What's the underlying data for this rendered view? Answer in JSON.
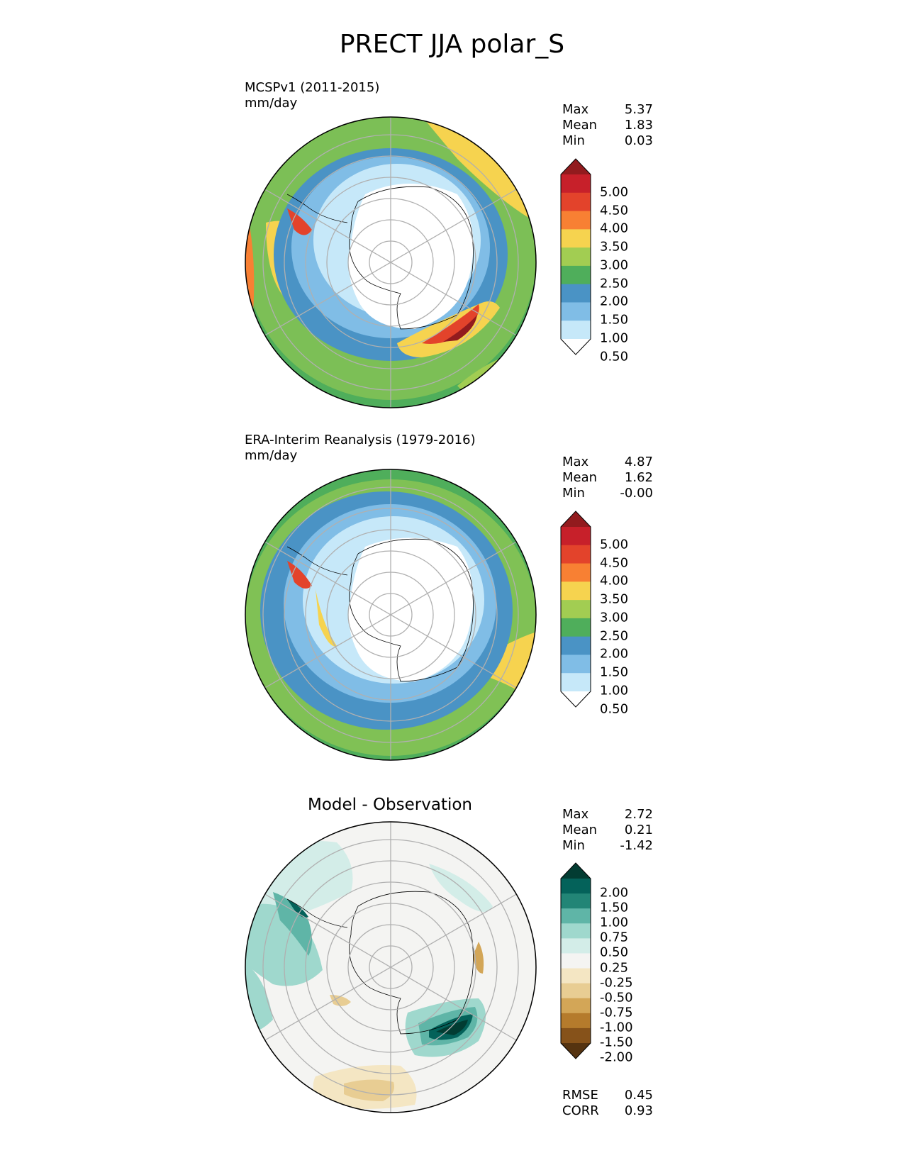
{
  "title": "PRECT JJA polar_S",
  "panels": [
    {
      "label": "MCSPv1 (2011-2015)",
      "units": "mm/day",
      "stats": {
        "max_label": "Max",
        "max": "5.37",
        "mean_label": "Mean",
        "mean": "1.83",
        "min_label": "Min",
        "min": "0.03"
      },
      "colorbar": {
        "ticks": [
          "5.00",
          "4.50",
          "4.00",
          "3.50",
          "3.00",
          "2.50",
          "2.00",
          "1.50",
          "1.00",
          "0.50"
        ],
        "colors": [
          "#ffffff",
          "#c6e8f9",
          "#80bde6",
          "#4a93c5",
          "#4fae5b",
          "#a2cd52",
          "#f6d34f",
          "#f88033",
          "#e3432b",
          "#c7202a",
          "#921b1e"
        ]
      }
    },
    {
      "label": "ERA-Interim Reanalysis (1979-2016)",
      "units": "mm/day",
      "stats": {
        "max_label": "Max",
        "max": "4.87",
        "mean_label": "Mean",
        "mean": "1.62",
        "min_label": "Min",
        "min": "-0.00"
      },
      "colorbar": {
        "ticks": [
          "5.00",
          "4.50",
          "4.00",
          "3.50",
          "3.00",
          "2.50",
          "2.00",
          "1.50",
          "1.00",
          "0.50"
        ],
        "colors": [
          "#ffffff",
          "#c6e8f9",
          "#80bde6",
          "#4a93c5",
          "#4fae5b",
          "#a2cd52",
          "#f6d34f",
          "#f88033",
          "#e3432b",
          "#c7202a",
          "#921b1e"
        ]
      }
    },
    {
      "label": "Model - Observation",
      "stats": {
        "max_label": "Max",
        "max": "2.72",
        "mean_label": "Mean",
        "mean": "0.21",
        "min_label": "Min",
        "min": "-1.42"
      },
      "metrics": {
        "rmse_label": "RMSE",
        "rmse": "0.45",
        "corr_label": "CORR",
        "corr": "0.93"
      },
      "colorbar": {
        "ticks": [
          "2.00",
          "1.50",
          "1.00",
          "0.75",
          "0.50",
          "0.25",
          "-0.25",
          "-0.50",
          "-0.75",
          "-1.00",
          "-1.50",
          "-2.00"
        ],
        "colors": [
          "#553310",
          "#86521a",
          "#b57b2c",
          "#d3a657",
          "#e8cd93",
          "#f4e6c3",
          "#f4f4f2",
          "#d3ede8",
          "#9fd8cd",
          "#5fb5a7",
          "#228576",
          "#04625a",
          "#023c32"
        ]
      }
    }
  ]
}
